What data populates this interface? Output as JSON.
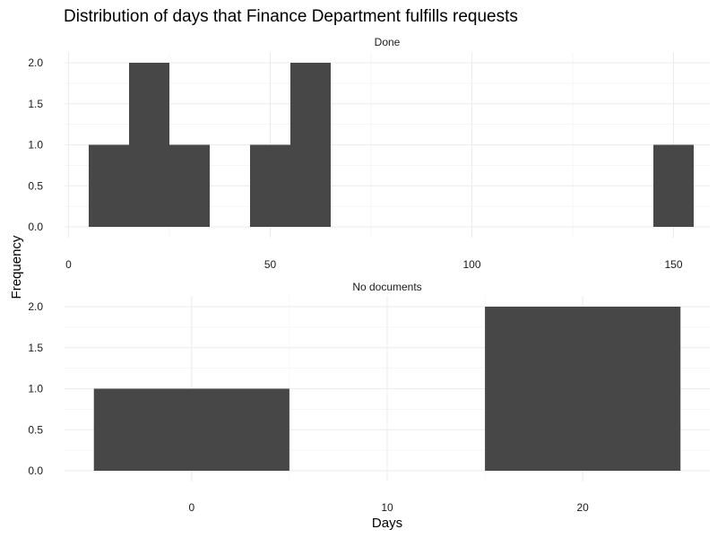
{
  "chart_data": {
    "type": "bar",
    "title": "Distribution of days that Finance Department fulfills requests",
    "xlabel": "Days",
    "ylabel": "Frequency",
    "grid": true,
    "legend": "none",
    "bar_color": "#474747",
    "panels": [
      {
        "strip_label": "Done",
        "bins": [
          {
            "x_start": 5,
            "x_end": 15,
            "count": 1
          },
          {
            "x_start": 15,
            "x_end": 25,
            "count": 2
          },
          {
            "x_start": 25,
            "x_end": 35,
            "count": 1
          },
          {
            "x_start": 45,
            "x_end": 55,
            "count": 1
          },
          {
            "x_start": 55,
            "x_end": 65,
            "count": 2
          },
          {
            "x_start": 145,
            "x_end": 155,
            "count": 1
          }
        ],
        "xlim": [
          -1,
          159
        ],
        "xticks": [
          0,
          50,
          100,
          150
        ],
        "xtick_labels": [
          "0",
          "50",
          "100",
          "150"
        ],
        "ylim": [
          0,
          2
        ],
        "yticks": [
          0,
          0.5,
          1,
          1.5,
          2
        ],
        "ytick_labels": [
          "0.0",
          "0.5",
          "1.0",
          "1.5",
          "2.0"
        ]
      },
      {
        "strip_label": "No documents",
        "bins": [
          {
            "x_start": -5,
            "x_end": 5,
            "count": 1
          },
          {
            "x_start": 15,
            "x_end": 25,
            "count": 2
          }
        ],
        "xlim": [
          -6.5,
          26.5
        ],
        "xticks": [
          0,
          10,
          20
        ],
        "xtick_labels": [
          "0",
          "10",
          "20"
        ],
        "ylim": [
          0,
          2
        ],
        "yticks": [
          0,
          0.5,
          1,
          1.5,
          2
        ],
        "ytick_labels": [
          "0.0",
          "0.5",
          "1.0",
          "1.5",
          "2.0"
        ]
      }
    ]
  }
}
